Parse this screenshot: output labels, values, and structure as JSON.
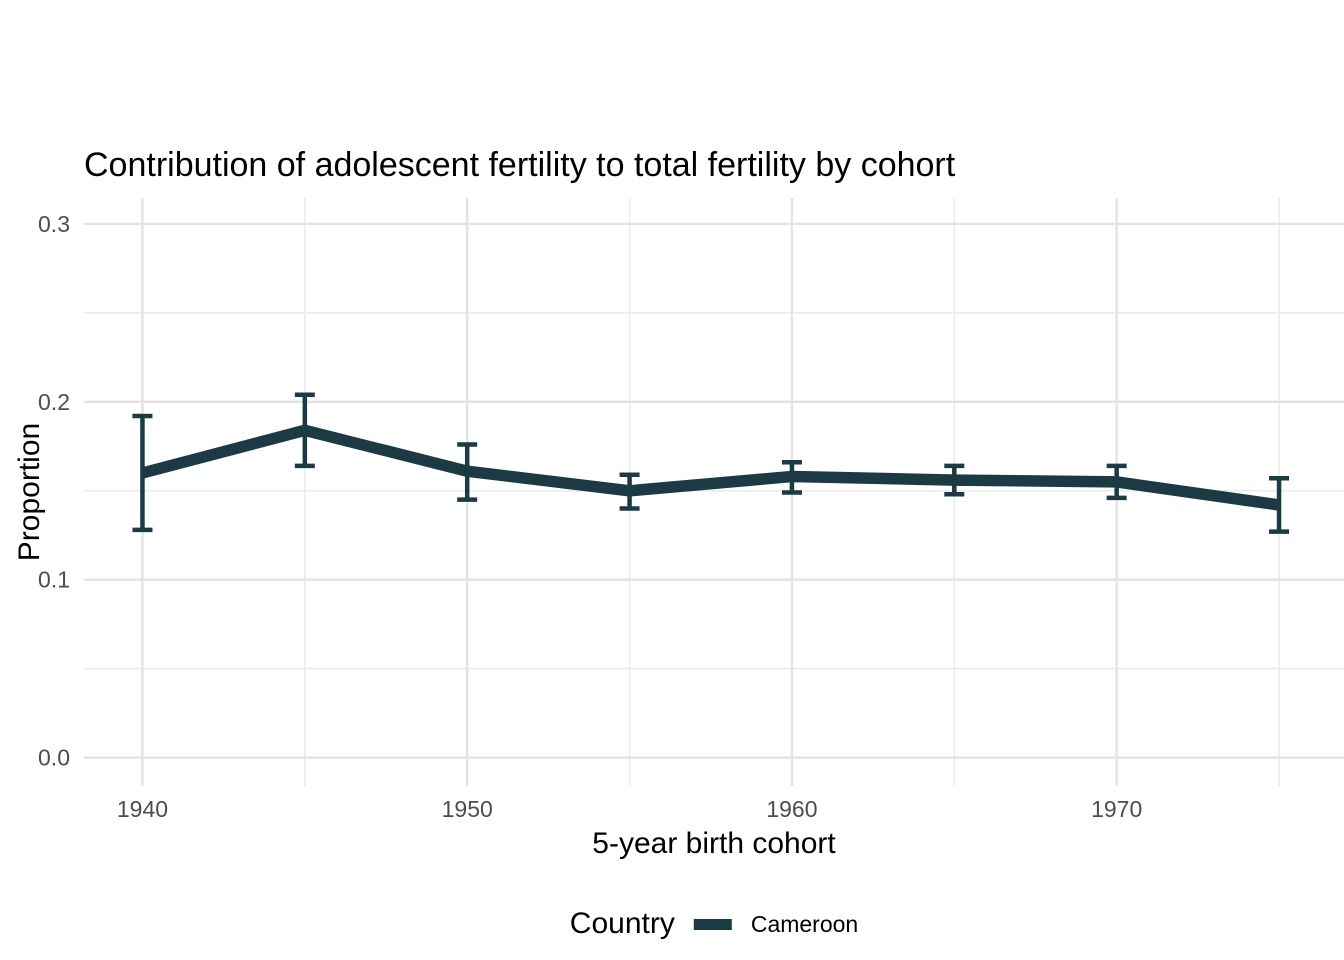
{
  "chart_data": {
    "type": "line",
    "title": "Contribution of adolescent fertility to total fertility by cohort",
    "xlabel": "5-year birth cohort",
    "ylabel": "Proportion",
    "legend": {
      "title": "Country",
      "position": "bottom"
    },
    "series": [
      {
        "name": "Cameroon",
        "color": "#1b3a44",
        "x": [
          1940,
          1945,
          1950,
          1955,
          1960,
          1965,
          1970,
          1975
        ],
        "y": [
          0.16,
          0.184,
          0.161,
          0.15,
          0.158,
          0.156,
          0.155,
          0.142
        ],
        "y_lower": [
          0.128,
          0.164,
          0.145,
          0.14,
          0.149,
          0.148,
          0.146,
          0.127
        ],
        "y_upper": [
          0.192,
          0.204,
          0.176,
          0.159,
          0.166,
          0.164,
          0.164,
          0.157
        ]
      }
    ],
    "x_ticks_major": [
      1940,
      1950,
      1960,
      1970
    ],
    "x_tick_labels": [
      "1940",
      "1950",
      "1960",
      "1970"
    ],
    "x_ticks_minor": [
      1945,
      1955,
      1965,
      1975
    ],
    "y_ticks_major": [
      0.0,
      0.1,
      0.2,
      0.3
    ],
    "y_tick_labels": [
      "0.0",
      "0.1",
      "0.2",
      "0.3"
    ],
    "y_ticks_minor": [
      0.05,
      0.15,
      0.25
    ],
    "xlim": [
      1938.2,
      1977.0
    ],
    "ylim": [
      -0.016,
      0.3146
    ],
    "grid": true,
    "background": "#ffffff",
    "grid_major_color": "#e3e3e3",
    "grid_minor_color": "#ececec",
    "tick_label_color": "#4d4d4d",
    "text_color": "#000000"
  }
}
